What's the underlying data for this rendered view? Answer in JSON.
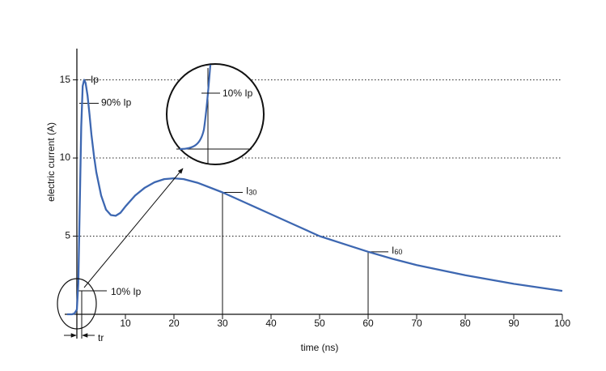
{
  "chart_data": {
    "type": "line",
    "x_label": "time (ns)",
    "y_label": "electric current (A)",
    "xlim": [
      -2.5,
      100
    ],
    "ylim": [
      0,
      17
    ],
    "xticks": [
      10,
      20,
      30,
      40,
      50,
      60,
      70,
      80,
      90,
      100
    ],
    "yticks": [
      5,
      10,
      15
    ],
    "grid": true,
    "series": [
      {
        "color": "#3d67b1",
        "x": [
          -2,
          -1,
          -0.5,
          0,
          0.3,
          0.6,
          0.9,
          1.2,
          1.5,
          1.8,
          2.2,
          2.6,
          3,
          3.5,
          4,
          5,
          6,
          7,
          8,
          9,
          10,
          12,
          14,
          16,
          18,
          20,
          22,
          25,
          30,
          35,
          40,
          45,
          50,
          55,
          60,
          65,
          70,
          80,
          90,
          100
        ],
        "values": [
          0,
          0,
          0.05,
          0.3,
          2,
          7,
          12,
          14.6,
          15,
          14.8,
          14,
          12.8,
          11.5,
          10.2,
          9.1,
          7.6,
          6.7,
          6.35,
          6.3,
          6.5,
          6.9,
          7.6,
          8.1,
          8.45,
          8.65,
          8.7,
          8.65,
          8.4,
          7.8,
          7.1,
          6.4,
          5.7,
          5.0,
          4.5,
          4.0,
          3.55,
          3.15,
          2.5,
          1.95,
          1.5
        ]
      }
    ],
    "annotations": [
      {
        "text": "Ip",
        "x": 1.5,
        "y": 15
      },
      {
        "text": "90% Ip",
        "y": 13.5
      },
      {
        "text": "10% Ip",
        "y": 1.5
      },
      {
        "text": "I",
        "sub": "30",
        "x": 30,
        "y": 7.8
      },
      {
        "text": "I",
        "sub": "60",
        "x": 60,
        "y": 4.0
      },
      {
        "text": "tr",
        "x": 1
      }
    ],
    "inset_label": "10% Ip"
  }
}
